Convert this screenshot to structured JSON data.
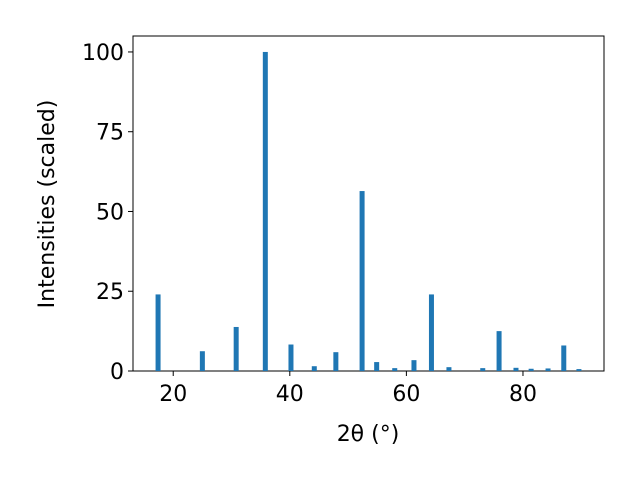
{
  "chart_data": {
    "type": "bar",
    "x_label": "2θ (°)",
    "y_label": "Intensities (scaled)",
    "x": [
      17.4,
      25.0,
      30.8,
      35.8,
      40.2,
      44.2,
      47.9,
      52.4,
      54.9,
      58.0,
      61.3,
      64.3,
      67.3,
      73.1,
      75.9,
      78.8,
      81.4,
      84.3,
      87.0,
      89.6
    ],
    "values": [
      24,
      6.2,
      13.8,
      100,
      8.3,
      1.5,
      5.9,
      56.4,
      2.8,
      0.9,
      3.4,
      24,
      1.2,
      0.9,
      12.5,
      1.0,
      0.7,
      0.8,
      8.0,
      0.6
    ],
    "color": "#1f77b4",
    "xlim": [
      13.1,
      93.9
    ],
    "xticks": [
      20,
      40,
      60,
      80
    ],
    "ylim": [
      0,
      105
    ],
    "yticks": [
      0,
      25,
      50,
      75,
      100
    ],
    "grid": false
  }
}
